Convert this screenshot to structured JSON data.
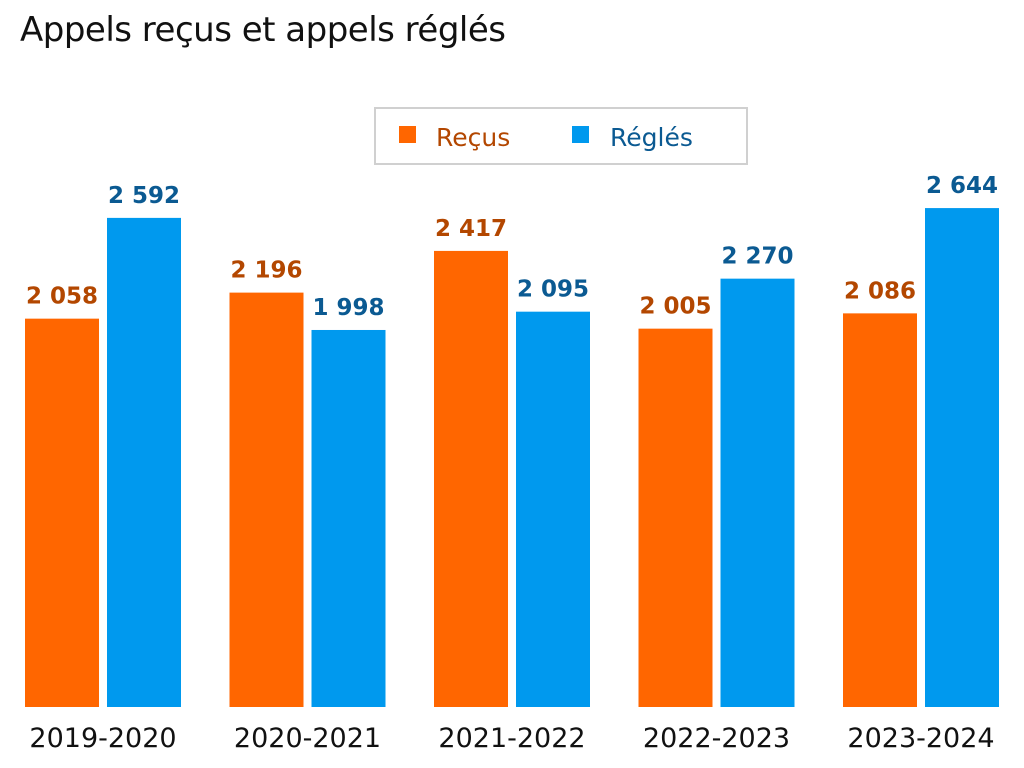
{
  "chart_data": {
    "type": "bar",
    "title": "Appels reçus et appels réglés",
    "categories": [
      "2019-2020",
      "2020-2021",
      "2021-2022",
      "2022-2023",
      "2023-2024"
    ],
    "series": [
      {
        "name": "Reçus",
        "color": "#ff6600",
        "label_color": "#b34700",
        "values": [
          2058,
          2196,
          2417,
          2005,
          2086
        ],
        "labels": [
          "2 058",
          "2 196",
          "2 417",
          "2 005",
          "2 086"
        ]
      },
      {
        "name": "Réglés",
        "color": "#0099ee",
        "label_color": "#0b5a92",
        "values": [
          2592,
          1998,
          2095,
          2270,
          2644
        ],
        "labels": [
          "2 592",
          "1 998",
          "2 095",
          "2 270",
          "2 644"
        ]
      }
    ],
    "ylim": [
      0,
      3000
    ],
    "grid": false,
    "legend_position": "top-right"
  }
}
